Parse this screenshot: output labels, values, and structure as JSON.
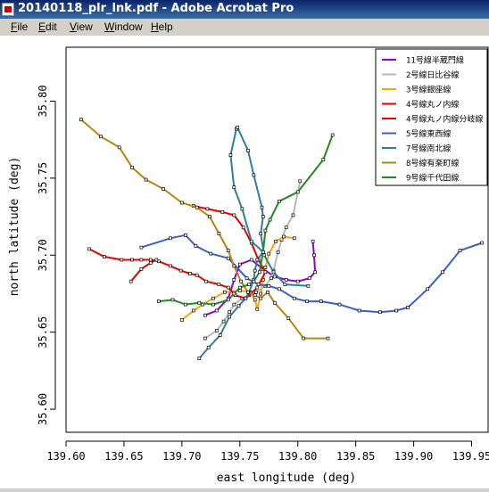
{
  "window": {
    "title": "20140118_plr_lnk.pdf - Adobe Acrobat Pro"
  },
  "menu": [
    {
      "label": "File",
      "accel": "F",
      "rest": "ile"
    },
    {
      "label": "Edit",
      "accel": "E",
      "rest": "dit"
    },
    {
      "label": "View",
      "accel": "V",
      "rest": "iew"
    },
    {
      "label": "Window",
      "accel": "W",
      "rest": "indow"
    },
    {
      "label": "Help",
      "accel": "H",
      "rest": "elp"
    }
  ],
  "chart_data": {
    "type": "line",
    "xlabel": "east longitude (deg)",
    "ylabel": "north latitude (deg)",
    "xlim": [
      139.6,
      139.965
    ],
    "ylim": [
      35.585,
      35.835
    ],
    "xticks": [
      "139.65",
      "139.70",
      "139.75",
      "139.80",
      "139.85",
      "139.90",
      "139.95"
    ],
    "xtick_vals": [
      139.65,
      139.7,
      139.75,
      139.8,
      139.85,
      139.9,
      139.95
    ],
    "xtick_extra": [
      {
        "label": "139.60",
        "val": 139.6
      },
      {
        "label": "",
        "val": 0
      }
    ],
    "yticks": [
      "35.60",
      "35.65",
      "35.70",
      "35.75",
      "35.80"
    ],
    "ytick_vals": [
      35.6,
      35.65,
      35.7,
      35.75,
      35.8
    ],
    "series": [
      {
        "name": "11号線半蔵門線",
        "color": "#9400d3",
        "x": [
          139.72,
          139.73,
          139.74,
          139.745,
          139.75,
          139.76,
          139.77,
          139.78,
          139.79,
          139.8,
          139.81,
          139.815,
          139.814,
          139.813
        ],
        "y": [
          35.661,
          35.664,
          35.672,
          35.684,
          35.694,
          35.697,
          35.691,
          35.686,
          35.684,
          35.683,
          35.685,
          35.689,
          35.7,
          35.709
        ]
      },
      {
        "name": "2号線日比谷線",
        "color": "#b8b8b8",
        "x": [
          139.72,
          139.73,
          139.736,
          139.741,
          139.745,
          139.752,
          139.758,
          139.764,
          139.772,
          139.777,
          139.779,
          139.783,
          139.786,
          139.79,
          139.796,
          139.802
        ],
        "y": [
          35.646,
          35.651,
          35.657,
          35.663,
          35.668,
          35.672,
          35.674,
          35.676,
          35.68,
          35.685,
          35.69,
          35.702,
          35.71,
          35.718,
          35.726,
          35.748
        ]
      },
      {
        "name": "3号線銀座線",
        "color": "#ffa500",
        "x": [
          139.7,
          139.71,
          139.718,
          139.727,
          139.737,
          139.75,
          139.759,
          139.763,
          139.765,
          139.768,
          139.77,
          139.772,
          139.775,
          139.781,
          139.788,
          139.797
        ],
        "y": [
          35.658,
          35.664,
          35.668,
          35.672,
          35.676,
          35.677,
          35.676,
          35.671,
          35.665,
          35.675,
          35.684,
          35.692,
          35.701,
          35.709,
          35.712,
          35.711
        ]
      },
      {
        "name": "4号線丸ノ内線",
        "color": "#ee0000",
        "x": [
          139.62,
          139.633,
          139.648,
          139.657,
          139.665,
          139.673,
          139.68,
          139.69,
          139.699,
          139.707,
          139.713,
          139.721,
          139.732,
          139.74,
          139.746,
          139.755,
          139.765,
          139.772,
          139.766,
          139.76,
          139.753,
          139.745,
          139.735,
          139.722,
          139.71
        ],
        "y": [
          35.704,
          35.699,
          35.697,
          35.697,
          35.697,
          35.697,
          35.696,
          35.693,
          35.69,
          35.688,
          35.687,
          35.683,
          35.681,
          35.679,
          35.674,
          35.672,
          35.679,
          35.689,
          35.697,
          35.708,
          35.718,
          35.726,
          35.728,
          35.73,
          35.732
        ]
      },
      {
        "name": "4号線丸ノ内線分岐線",
        "color": "#ee0000",
        "x": [
          139.656,
          139.665,
          139.673,
          139.678
        ],
        "y": [
          35.683,
          35.691,
          35.695,
          35.697
        ]
      },
      {
        "name": "5号線東西線",
        "color": "#3a5fcd",
        "x": [
          139.665,
          139.69,
          139.703,
          139.712,
          139.725,
          139.74,
          139.756,
          139.766,
          139.775,
          139.784,
          139.797,
          139.808,
          139.82,
          139.836,
          139.853,
          139.871,
          139.885,
          139.895,
          139.912,
          139.925,
          139.94,
          139.959
        ],
        "y": [
          35.705,
          35.711,
          35.713,
          35.706,
          35.701,
          35.698,
          35.685,
          35.681,
          35.68,
          35.678,
          35.672,
          35.67,
          35.67,
          35.668,
          35.664,
          35.663,
          35.664,
          35.666,
          35.678,
          35.689,
          35.703,
          35.708
        ]
      },
      {
        "name": "7号線南北線",
        "color": "#2e7ea0",
        "x": [
          139.715,
          139.723,
          139.733,
          139.741,
          139.749,
          139.755,
          139.758,
          139.762,
          139.763,
          139.765,
          139.77,
          139.76,
          139.752,
          139.745,
          139.742,
          139.747,
          139.748,
          139.757,
          139.762,
          139.769,
          139.77,
          139.768,
          139.771,
          139.779,
          139.789,
          139.809
        ],
        "y": [
          35.633,
          35.64,
          35.648,
          35.66,
          35.667,
          35.672,
          35.676,
          35.684,
          35.69,
          35.697,
          35.702,
          35.709,
          35.73,
          35.744,
          35.765,
          35.782,
          35.783,
          35.768,
          35.752,
          35.731,
          35.725,
          35.714,
          35.7,
          35.689,
          35.681,
          35.68
        ]
      },
      {
        "name": "8号線有楽町線",
        "color": "#b8860b",
        "x": [
          139.613,
          139.63,
          139.646,
          139.657,
          139.669,
          139.684,
          139.7,
          139.713,
          139.724,
          139.732,
          139.74,
          139.745,
          139.751,
          139.757,
          139.763,
          139.768,
          139.774,
          139.78,
          139.792,
          139.805,
          139.826
        ],
        "y": [
          35.788,
          35.777,
          35.77,
          35.757,
          35.749,
          35.743,
          35.734,
          35.731,
          35.725,
          35.714,
          35.703,
          35.693,
          35.683,
          35.676,
          35.674,
          35.672,
          35.676,
          35.669,
          35.659,
          35.646,
          35.646
        ]
      },
      {
        "name": "9号線千代田線",
        "color": "#228b22",
        "x": [
          139.68,
          139.692,
          139.703,
          139.715,
          139.727,
          139.74,
          139.745,
          139.75,
          139.758,
          139.762,
          139.767,
          139.77,
          139.772,
          139.776,
          139.784,
          139.8,
          139.822,
          139.83
        ],
        "y": [
          35.67,
          35.671,
          35.668,
          35.669,
          35.668,
          35.671,
          35.675,
          35.679,
          35.681,
          35.683,
          35.689,
          35.702,
          35.716,
          35.723,
          35.735,
          35.741,
          35.762,
          35.778
        ]
      }
    ]
  }
}
